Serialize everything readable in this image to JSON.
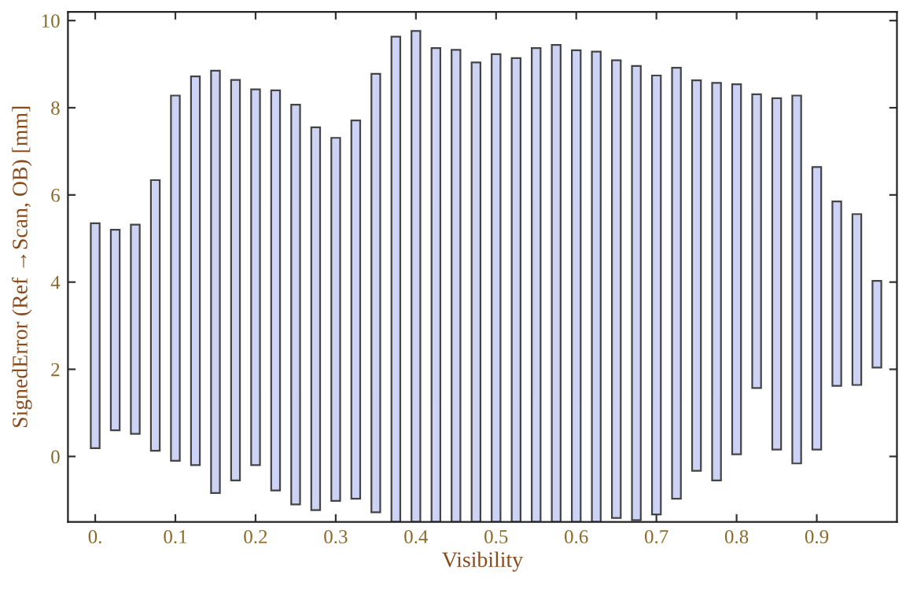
{
  "chart_data": {
    "type": "bar",
    "xlabel": "Visibility",
    "ylabel": "SignedError (Ref →Scan, OB) [mm]",
    "x": [
      0,
      0.025,
      0.05,
      0.075,
      0.1,
      0.125,
      0.15,
      0.175,
      0.2,
      0.225,
      0.25,
      0.275,
      0.3,
      0.325,
      0.35,
      0.375,
      0.4,
      0.425,
      0.45,
      0.475,
      0.5,
      0.525,
      0.55,
      0.575,
      0.6,
      0.625,
      0.65,
      0.675,
      0.7,
      0.725,
      0.75,
      0.775,
      0.8,
      0.825,
      0.85,
      0.875,
      0.9,
      0.925,
      0.95,
      0.975
    ],
    "base": [
      0.19,
      0.6,
      0.52,
      0.13,
      -0.1,
      -0.2,
      -0.84,
      -0.55,
      -0.2,
      -0.78,
      -1.1,
      -1.23,
      -1.02,
      -0.97,
      -1.28,
      -1.5,
      -1.5,
      -1.5,
      -1.5,
      -1.5,
      -1.5,
      -1.5,
      -1.5,
      -1.5,
      -1.5,
      -1.5,
      -1.41,
      -1.46,
      -1.33,
      -0.97,
      -0.33,
      -0.55,
      0.05,
      1.57,
      0.16,
      -0.16,
      0.16,
      1.62,
      1.64,
      2.04
    ],
    "values": [
      5.16,
      4.6,
      4.8,
      6.21,
      8.38,
      8.92,
      9.69,
      9.19,
      8.62,
      9.18,
      9.17,
      8.78,
      8.33,
      8.68,
      10.06,
      11.13,
      11.26,
      10.87,
      10.83,
      10.54,
      10.73,
      10.64,
      10.87,
      10.94,
      10.82,
      10.79,
      10.5,
      10.42,
      10.07,
      9.89,
      8.96,
      9.12,
      8.49,
      6.74,
      8.06,
      8.44,
      6.48,
      4.23,
      3.92,
      1.99
    ],
    "color": "#ccd3f5",
    "xlim": [
      -0.034,
      1.0
    ],
    "ylim": [
      -1.5,
      10.2
    ],
    "xticks": [
      {
        "value": 0,
        "label": "0."
      },
      0.1,
      0.2,
      0.3,
      0.4,
      0.5,
      0.6,
      0.7,
      0.8,
      0.9
    ],
    "yticks": [
      0,
      2,
      4,
      6,
      8,
      10
    ],
    "grid": false,
    "legend": false
  }
}
